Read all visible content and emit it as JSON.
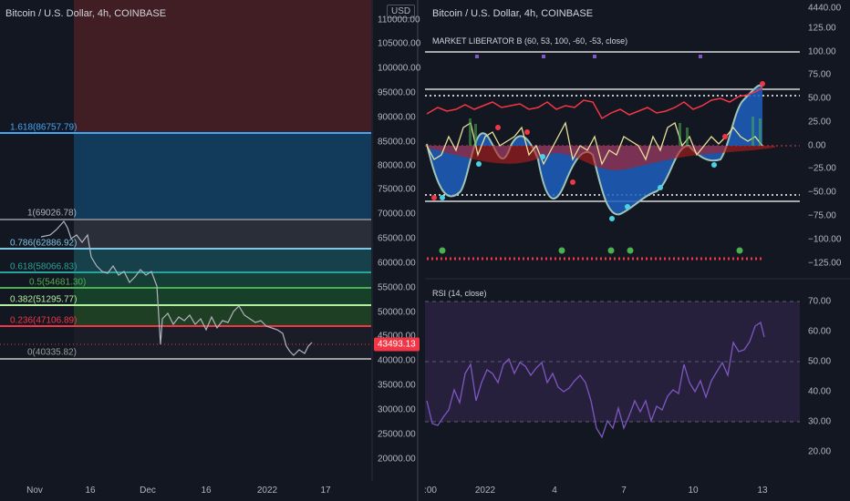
{
  "left_chart": {
    "title": "Bitcoin / U.S. Dollar, 4h, COINBASE",
    "price_axis_unit": "USD",
    "price_ticks": [
      "110000.00",
      "105000.00",
      "100000.00",
      "95000.00",
      "90000.00",
      "85000.00",
      "80000.00",
      "75000.00",
      "70000.00",
      "65000.00",
      "60000.00",
      "55000.00",
      "50000.00",
      "45000.00",
      "40000.00",
      "35000.00",
      "30000.00",
      "25000.00",
      "20000.00"
    ],
    "current_price": "43493.13",
    "time_ticks": [
      "Nov",
      "16",
      "Dec",
      "16",
      "2022",
      "17"
    ],
    "fib_levels": [
      {
        "label": "1.618(86757.79)",
        "color": "#42a5f5"
      },
      {
        "label": "1(69026.78)",
        "color": "#b2b5be"
      },
      {
        "label": "0.786(62886.92)",
        "color": "#7ec8e3"
      },
      {
        "label": "0.618(58066.83)",
        "color": "#26a69a"
      },
      {
        "label": "0.5(54681.30)",
        "color": "#4caf50"
      },
      {
        "label": "0.382(51295.77)",
        "color": "#b2f0a0"
      },
      {
        "label": "0.236(47106.89)",
        "color": "#f23645"
      },
      {
        "label": "0(40335.82)",
        "color": "#9e9e9e"
      }
    ]
  },
  "right_chart": {
    "title": "Bitcoin / U.S. Dollar, 4h, COINBASE",
    "top_right_price": "4440.00",
    "indicator_label": "MARKET LIBERATOR B (60, 53, 100, -60, -53, close)",
    "indicator_ticks": [
      "125.00",
      "100.00",
      "75.00",
      "50.00",
      "25.00",
      "0.00",
      "−25.00",
      "−50.00",
      "−75.00",
      "−100.00",
      "−125.00"
    ],
    "rsi_label": "RSI (14, close)",
    "rsi_ticks": [
      "70.00",
      "60.00",
      "50.00",
      "40.00",
      "30.00",
      "20.00"
    ],
    "time_ticks": [
      ":00",
      "2022",
      "4",
      "7",
      "10",
      "13"
    ],
    "colors": {
      "rsi_line": "#7e57c2",
      "rsi_band": "#2a2140",
      "accent_red": "#f23645",
      "accent_blue": "#2962ff"
    }
  }
}
